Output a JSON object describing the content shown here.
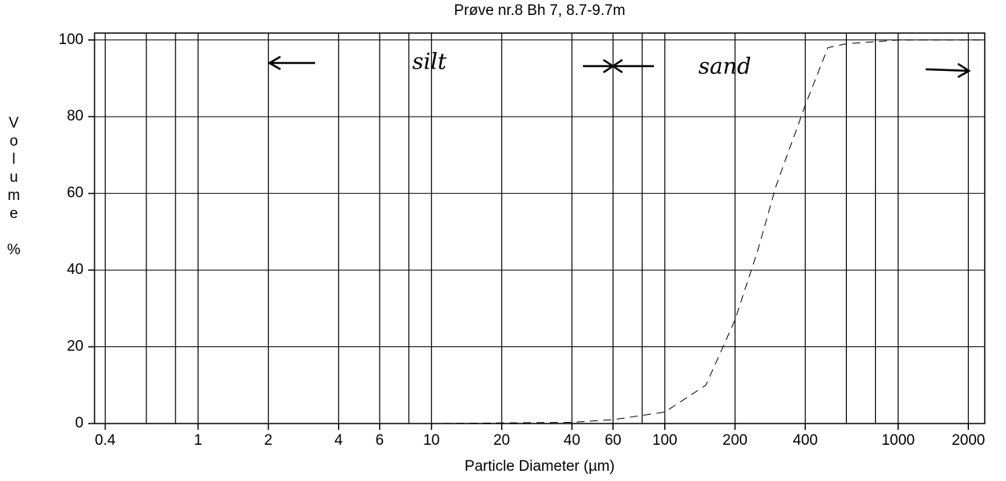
{
  "chart_data": {
    "type": "line",
    "title": "Prøve nr.8 Bh 7, 8.7-9.7m",
    "xlabel": "Particle Diameter (µm)",
    "ylabel": "Volume %",
    "xscale": "log",
    "xlim": [
      0.36,
      2350
    ],
    "ylim": [
      0,
      101.8
    ],
    "xticks": [
      0.4,
      1,
      2,
      4,
      6,
      10,
      20,
      40,
      60,
      100,
      200,
      400,
      1000,
      2000
    ],
    "x_gridlines": [
      0.4,
      0.6,
      0.8,
      1,
      2,
      4,
      6,
      8,
      10,
      20,
      40,
      60,
      80,
      100,
      200,
      400,
      600,
      800,
      1000,
      2000
    ],
    "yticks": [
      0,
      20,
      40,
      60,
      80,
      100
    ],
    "grid": true,
    "annotations": [
      "silt",
      "sand"
    ],
    "series": [
      {
        "name": "Volume",
        "color": "#000000",
        "dashed": true,
        "x": [
          0.36,
          1,
          10,
          40,
          60,
          100,
          150,
          200,
          250,
          300,
          400,
          500,
          600,
          1000,
          2000,
          2350
        ],
        "values": [
          0,
          0,
          0,
          0.3,
          1,
          3,
          10,
          27,
          45,
          62,
          83,
          98,
          99,
          100,
          100,
          100
        ]
      }
    ]
  }
}
